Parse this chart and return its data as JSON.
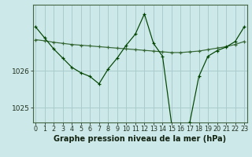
{
  "title": "Graphe pression niveau de la mer (hPa)",
  "background_color": "#cce8e8",
  "grid_color": "#aacccc",
  "line_color_main": "#004400",
  "line_color_smooth": "#336633",
  "x_labels": [
    "0",
    "1",
    "2",
    "3",
    "4",
    "5",
    "6",
    "7",
    "8",
    "9",
    "10",
    "11",
    "12",
    "13",
    "14",
    "15",
    "16",
    "17",
    "18",
    "19",
    "20",
    "21",
    "22",
    "23"
  ],
  "x_values": [
    0,
    1,
    2,
    3,
    4,
    5,
    6,
    7,
    8,
    9,
    10,
    11,
    12,
    13,
    14,
    15,
    16,
    17,
    18,
    19,
    20,
    21,
    22,
    23
  ],
  "y_main": [
    1027.2,
    1026.9,
    1026.6,
    1026.35,
    1026.1,
    1025.95,
    1025.85,
    1025.65,
    1026.05,
    1026.35,
    1026.7,
    1027.0,
    1027.55,
    1026.75,
    1026.4,
    1024.55,
    1024.55,
    1024.6,
    1025.85,
    1026.4,
    1026.55,
    1026.65,
    1026.8,
    1027.2
  ],
  "y_smooth": [
    1026.85,
    1026.82,
    1026.78,
    1026.75,
    1026.72,
    1026.7,
    1026.68,
    1026.66,
    1026.64,
    1026.62,
    1026.6,
    1026.58,
    1026.56,
    1026.54,
    1026.52,
    1026.5,
    1026.5,
    1026.52,
    1026.54,
    1026.58,
    1026.62,
    1026.66,
    1026.72,
    1026.8
  ],
  "ylim": [
    1024.6,
    1027.8
  ],
  "yticks": [
    1025,
    1026
  ],
  "ylabel_fontsize": 6.5,
  "xlabel_fontsize": 5.8,
  "title_fontsize": 7.0
}
